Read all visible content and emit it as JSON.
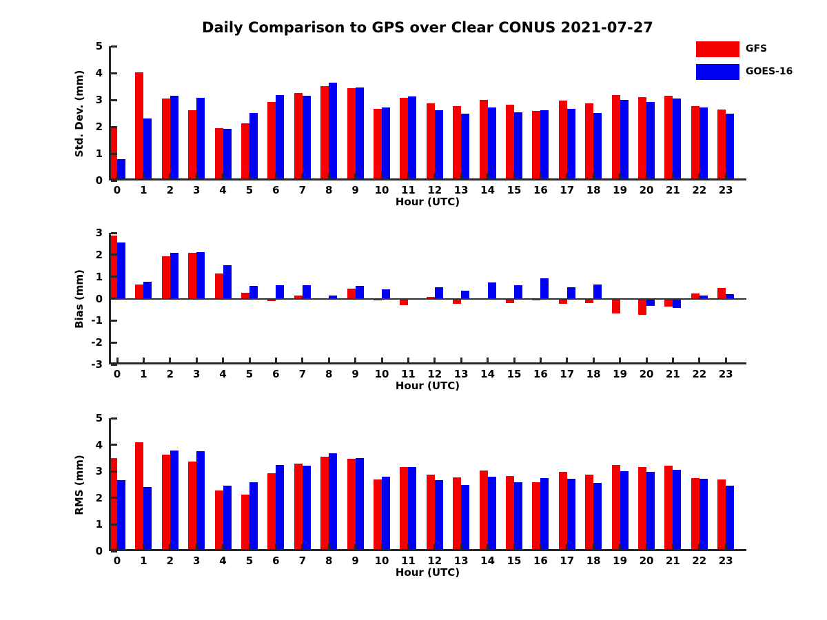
{
  "title": "Daily Comparison to GPS over Clear CONUS 2021-07-27",
  "legend": {
    "position": "upper right",
    "items": [
      {
        "label": "GFS",
        "color": "#f40000"
      },
      {
        "label": "GOES-16",
        "color": "#0000f4"
      }
    ]
  },
  "chart_data": [
    {
      "type": "bar",
      "ylabel": "Std. Dev. (mm)",
      "xlabel": "Hour (UTC)",
      "ylim": [
        0,
        5
      ],
      "yticks": [
        0,
        1,
        2,
        3,
        4,
        5
      ],
      "grid": false,
      "categories": [
        "0",
        "1",
        "2",
        "3",
        "4",
        "5",
        "6",
        "7",
        "8",
        "9",
        "10",
        "11",
        "12",
        "13",
        "14",
        "15",
        "16",
        "17",
        "18",
        "19",
        "20",
        "21",
        "22",
        "23"
      ],
      "series": [
        {
          "name": "GFS",
          "color": "#f40000",
          "values": [
            2.0,
            4.03,
            3.05,
            2.62,
            1.95,
            2.12,
            2.92,
            3.26,
            3.52,
            3.43,
            2.66,
            3.08,
            2.86,
            2.77,
            3.0,
            2.82,
            2.58,
            2.97,
            2.87,
            3.18,
            3.1,
            3.15,
            2.77,
            2.65
          ]
        },
        {
          "name": "GOES-16",
          "color": "#0000f4",
          "values": [
            0.8,
            2.3,
            3.15,
            3.07,
            1.92,
            2.52,
            3.17,
            3.15,
            3.63,
            3.45,
            2.73,
            3.12,
            2.62,
            2.5,
            2.72,
            2.55,
            2.62,
            2.67,
            2.52,
            3.0,
            2.93,
            3.04,
            2.73,
            2.48
          ]
        }
      ]
    },
    {
      "type": "bar",
      "ylabel": "Bias (mm)",
      "xlabel": "Hour (UTC)",
      "ylim": [
        -3,
        3
      ],
      "yticks": [
        -3,
        -2,
        -1,
        0,
        1,
        2,
        3
      ],
      "grid": false,
      "categories": [
        "0",
        "1",
        "2",
        "3",
        "4",
        "5",
        "6",
        "7",
        "8",
        "9",
        "10",
        "11",
        "12",
        "13",
        "14",
        "15",
        "16",
        "17",
        "18",
        "19",
        "20",
        "21",
        "22",
        "23"
      ],
      "series": [
        {
          "name": "GFS",
          "color": "#f40000",
          "values": [
            2.89,
            0.65,
            1.93,
            2.08,
            1.15,
            0.27,
            -0.12,
            0.13,
            0.02,
            0.44,
            -0.07,
            -0.3,
            0.08,
            -0.22,
            0.0,
            -0.2,
            -0.08,
            -0.23,
            -0.21,
            -0.66,
            -0.73,
            -0.35,
            0.25,
            0.5
          ]
        },
        {
          "name": "GOES-16",
          "color": "#0000f4",
          "values": [
            2.57,
            0.78,
            2.08,
            2.12,
            1.52,
            0.58,
            0.62,
            0.6,
            0.15,
            0.57,
            0.42,
            0.03,
            0.53,
            0.37,
            0.73,
            0.62,
            0.92,
            0.53,
            0.63,
            0.0,
            -0.33,
            -0.43,
            0.15,
            0.19
          ]
        }
      ]
    },
    {
      "type": "bar",
      "ylabel": "RMS (mm)",
      "xlabel": "Hour (UTC)",
      "ylim": [
        0,
        5
      ],
      "yticks": [
        0,
        1,
        2,
        3,
        4,
        5
      ],
      "grid": false,
      "categories": [
        "0",
        "1",
        "2",
        "3",
        "4",
        "5",
        "6",
        "7",
        "8",
        "9",
        "10",
        "11",
        "12",
        "13",
        "14",
        "15",
        "16",
        "17",
        "18",
        "19",
        "20",
        "21",
        "22",
        "23"
      ],
      "series": [
        {
          "name": "GFS",
          "color": "#f40000",
          "values": [
            3.5,
            4.1,
            3.62,
            3.37,
            2.28,
            2.13,
            2.93,
            3.28,
            3.55,
            3.47,
            2.7,
            3.15,
            2.88,
            2.78,
            3.02,
            2.83,
            2.6,
            2.97,
            2.88,
            3.25,
            3.15,
            3.2,
            2.75,
            2.7
          ]
        },
        {
          "name": "GOES-16",
          "color": "#0000f4",
          "values": [
            2.68,
            2.42,
            3.77,
            3.75,
            2.45,
            2.6,
            3.25,
            3.22,
            3.68,
            3.5,
            2.8,
            3.15,
            2.68,
            2.5,
            2.8,
            2.6,
            2.75,
            2.72,
            2.57,
            3.0,
            2.97,
            3.05,
            2.72,
            2.47
          ]
        }
      ]
    }
  ]
}
